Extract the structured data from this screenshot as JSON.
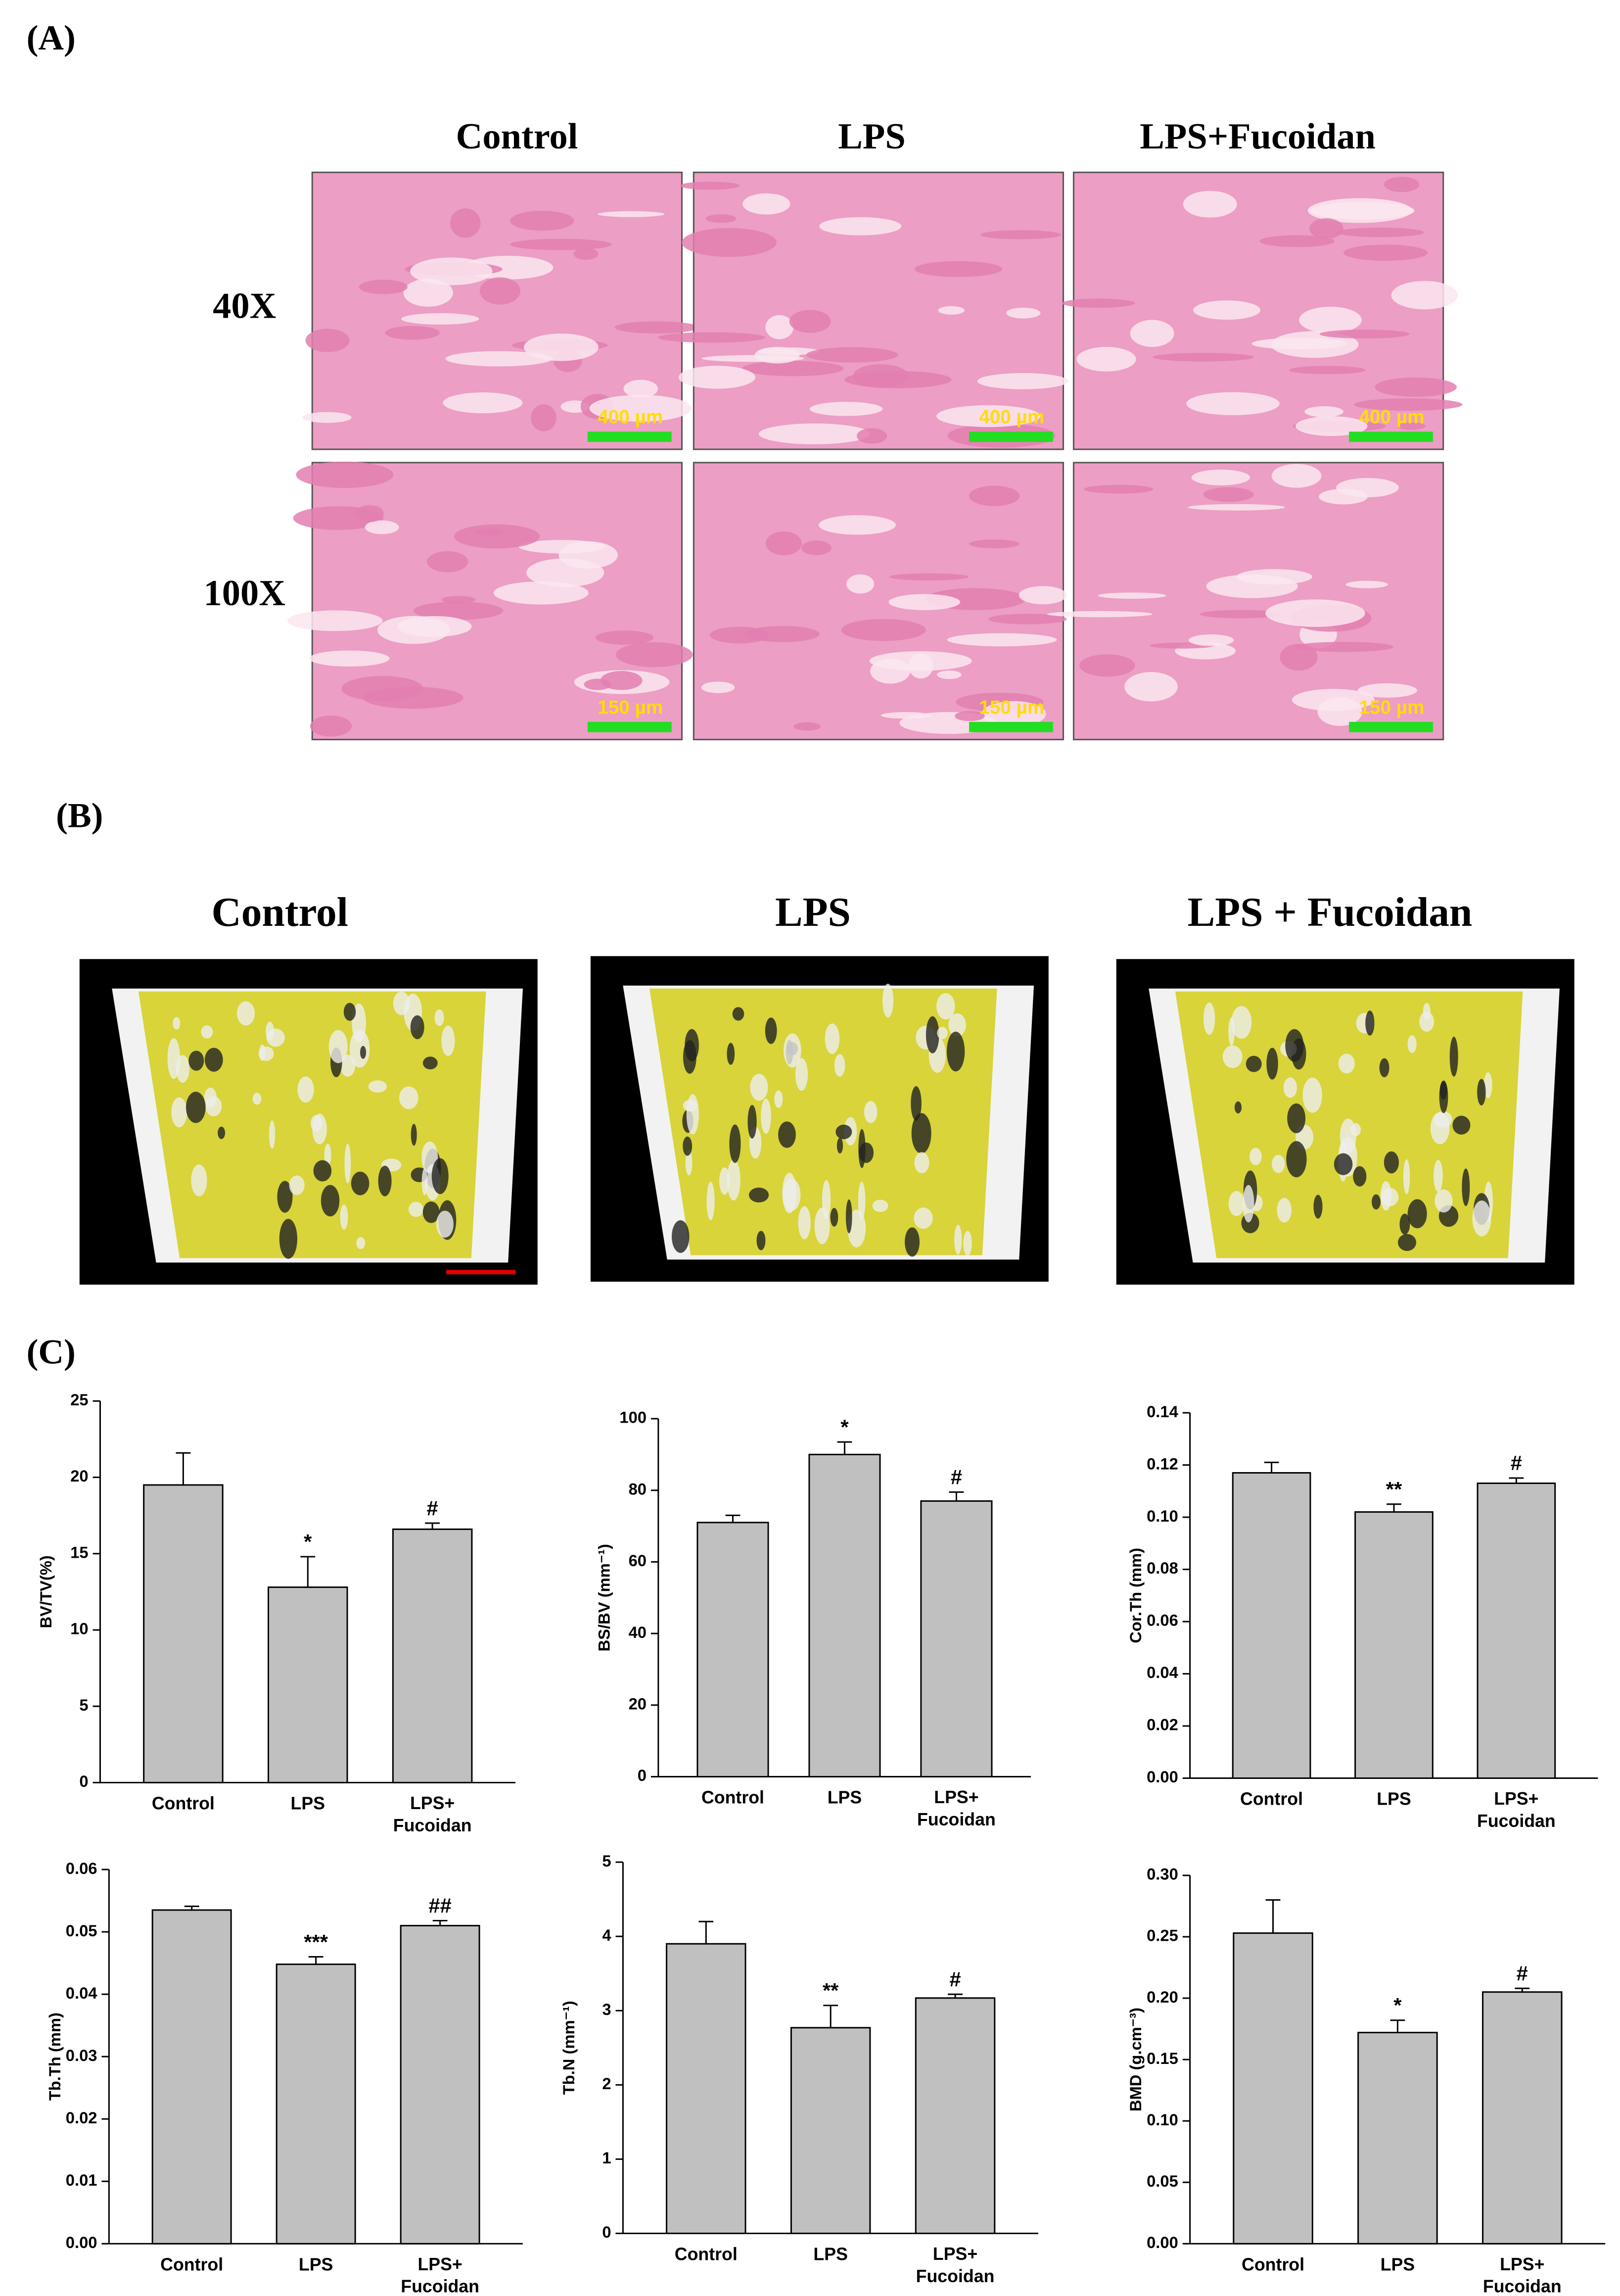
{
  "panel_a": {
    "label": "(A)",
    "columns": [
      "Control",
      "LPS",
      "LPS+Fucoidan"
    ],
    "rows": [
      "40X",
      "100X"
    ],
    "scale_bars": [
      [
        "400 µm",
        "400 µm",
        "400 µm"
      ],
      [
        "150 µm",
        "150 µm",
        "150 µm"
      ]
    ]
  },
  "panel_b": {
    "label": "(B)",
    "columns": [
      "Control",
      "LPS",
      "LPS + Fucoidan"
    ]
  },
  "panel_c": {
    "label": "(C)"
  },
  "chart_data": [
    {
      "type": "bar",
      "ylabel": "BV/TV(%)",
      "categories": [
        "Control",
        "LPS",
        "LPS+ Fucoidan"
      ],
      "values": [
        19.5,
        12.8,
        16.6
      ],
      "errors": [
        2.1,
        2.0,
        0.4
      ],
      "annotations": [
        null,
        "*",
        "#"
      ],
      "color": "#c0c0c0",
      "ylim": [
        0,
        25
      ],
      "yticks": [
        0,
        5,
        10,
        15,
        20,
        25
      ]
    },
    {
      "type": "bar",
      "ylabel": "BS/BV (mm⁻¹)",
      "categories": [
        "Control",
        "LPS",
        "LPS+ Fucoidan"
      ],
      "values": [
        71,
        90,
        77
      ],
      "errors": [
        2,
        3.5,
        2.5
      ],
      "annotations": [
        null,
        "*",
        "#"
      ],
      "color": "#c0c0c0",
      "ylim": [
        0,
        100
      ],
      "yticks": [
        0,
        20,
        40,
        60,
        80,
        100
      ]
    },
    {
      "type": "bar",
      "ylabel": "Cor.Th (mm)",
      "categories": [
        "Control",
        "LPS",
        "LPS+ Fucoidan"
      ],
      "values": [
        0.117,
        0.102,
        0.113
      ],
      "errors": [
        0.004,
        0.003,
        0.002
      ],
      "annotations": [
        null,
        "**",
        "#"
      ],
      "color": "#c0c0c0",
      "ylim": [
        0,
        0.14
      ],
      "yticks": [
        {
          "value": 0,
          "label": "0.00"
        },
        {
          "value": 0.02,
          "label": "0.02"
        },
        {
          "value": 0.04,
          "label": "0.04"
        },
        {
          "value": 0.06,
          "label": "0.06"
        },
        {
          "value": 0.08,
          "label": "0.08"
        },
        {
          "value": 0.1,
          "label": "0.10"
        },
        {
          "value": 0.12,
          "label": "0.12"
        },
        {
          "value": 0.14,
          "label": "0.14"
        }
      ]
    },
    {
      "type": "bar",
      "ylabel": "Tb.Th (mm)",
      "categories": [
        "Control",
        "LPS",
        "LPS+ Fucoidan"
      ],
      "values": [
        0.0535,
        0.0448,
        0.051
      ],
      "errors": [
        0.0006,
        0.0012,
        0.0008
      ],
      "annotations": [
        null,
        "***",
        "##"
      ],
      "color": "#c0c0c0",
      "ylim": [
        0,
        0.06
      ],
      "yticks": [
        {
          "value": 0,
          "label": "0.00"
        },
        {
          "value": 0.01,
          "label": "0.01"
        },
        {
          "value": 0.02,
          "label": "0.02"
        },
        {
          "value": 0.03,
          "label": "0.03"
        },
        {
          "value": 0.04,
          "label": "0.04"
        },
        {
          "value": 0.05,
          "label": "0.05"
        },
        {
          "value": 0.06,
          "label": "0.06"
        }
      ]
    },
    {
      "type": "bar",
      "ylabel": "Tb.N (mm⁻¹)",
      "categories": [
        "Control",
        "LPS",
        "LPS+ Fucoidan"
      ],
      "values": [
        3.9,
        2.77,
        3.17
      ],
      "errors": [
        0.3,
        0.3,
        0.05
      ],
      "annotations": [
        null,
        "**",
        "#"
      ],
      "color": "#c0c0c0",
      "ylim": [
        0,
        5
      ],
      "yticks": [
        0,
        1,
        2,
        3,
        4,
        5
      ]
    },
    {
      "type": "bar",
      "ylabel": "BMD (g.cm⁻³)",
      "categories": [
        "Control",
        "LPS",
        "LPS+ Fucoidan"
      ],
      "values": [
        0.253,
        0.172,
        0.205
      ],
      "errors": [
        0.027,
        0.01,
        0.003
      ],
      "annotations": [
        null,
        "*",
        "#"
      ],
      "color": "#c0c0c0",
      "ylim": [
        0,
        0.3
      ],
      "yticks": [
        {
          "value": 0,
          "label": "0.00"
        },
        {
          "value": 0.05,
          "label": "0.05"
        },
        {
          "value": 0.1,
          "label": "0.10"
        },
        {
          "value": 0.15,
          "label": "0.15"
        },
        {
          "value": 0.2,
          "label": "0.20"
        },
        {
          "value": 0.25,
          "label": "0.25"
        },
        {
          "value": 0.3,
          "label": "0.30"
        }
      ]
    }
  ]
}
